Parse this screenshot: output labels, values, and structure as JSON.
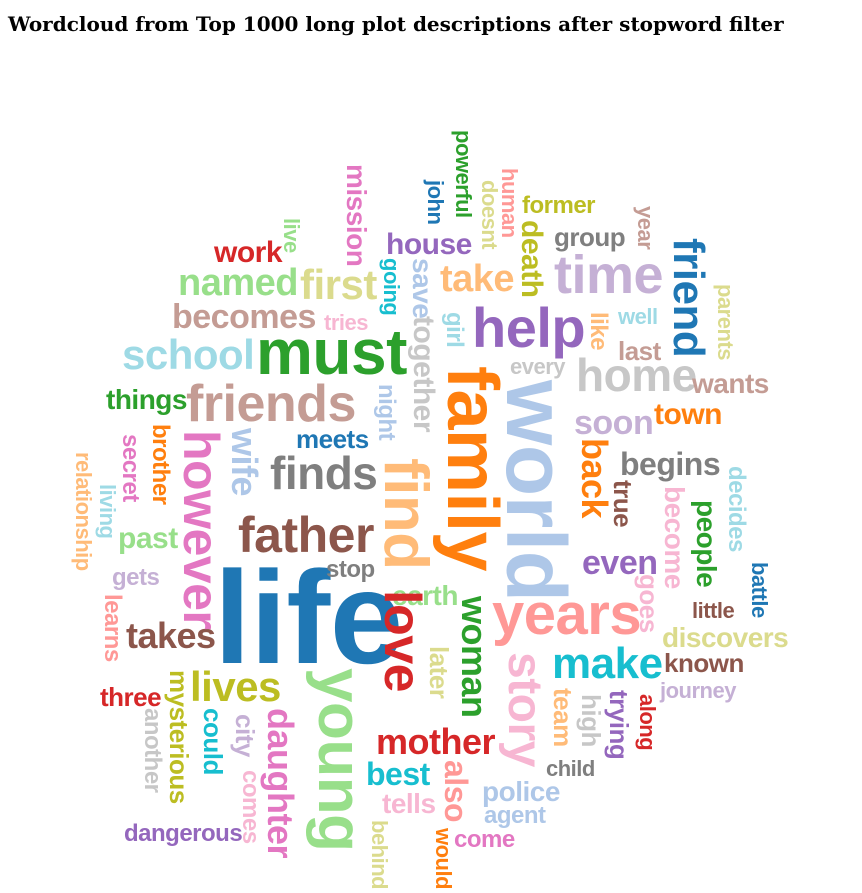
{
  "title": "Wordcloud from Top 1000 long plot descriptions after stopword filter",
  "palette": {
    "blue": "#1f77b4",
    "light_blue": "#aec7e8",
    "orange": "#ff7f0e",
    "light_orange": "#ffbb78",
    "green": "#2ca02c",
    "light_green": "#98df8a",
    "red": "#d62728",
    "light_red": "#ff9896",
    "purple": "#9467bd",
    "light_purple": "#c5b0d5",
    "brown": "#8c564b",
    "light_brown": "#c49c94",
    "pink": "#e377c2",
    "light_pink": "#f7b6d2",
    "gray": "#7f7f7f",
    "light_gray": "#c7c7c7",
    "olive": "#bcbd22",
    "light_olive": "#dbdb8d",
    "cyan": "#17becf",
    "light_cyan": "#9edae5"
  },
  "words": [
    {
      "text": "life",
      "color": "blue"
    },
    {
      "text": "world",
      "color": "light_blue"
    },
    {
      "text": "family",
      "color": "orange"
    },
    {
      "text": "must",
      "color": "green"
    },
    {
      "text": "young",
      "color": "light_green"
    },
    {
      "text": "years",
      "color": "light_red"
    },
    {
      "text": "find",
      "color": "light_orange"
    },
    {
      "text": "love",
      "color": "red"
    },
    {
      "text": "help",
      "color": "purple"
    },
    {
      "text": "time",
      "color": "light_purple"
    },
    {
      "text": "father",
      "color": "brown"
    },
    {
      "text": "friends",
      "color": "light_brown"
    },
    {
      "text": "however",
      "color": "pink"
    },
    {
      "text": "story",
      "color": "light_pink"
    },
    {
      "text": "home",
      "color": "light_gray"
    },
    {
      "text": "finds",
      "color": "gray"
    },
    {
      "text": "make",
      "color": "cyan"
    },
    {
      "text": "school",
      "color": "light_cyan"
    },
    {
      "text": "lives",
      "color": "olive"
    },
    {
      "text": "first",
      "color": "light_olive"
    },
    {
      "text": "named",
      "color": "light_green"
    },
    {
      "text": "becomes",
      "color": "light_brown"
    },
    {
      "text": "friend",
      "color": "blue"
    },
    {
      "text": "take",
      "color": "light_orange"
    },
    {
      "text": "mother",
      "color": "red"
    },
    {
      "text": "woman",
      "color": "green"
    },
    {
      "text": "daughter",
      "color": "pink"
    },
    {
      "text": "takes",
      "color": "brown"
    },
    {
      "text": "house",
      "color": "purple"
    },
    {
      "text": "wife",
      "color": "light_blue"
    },
    {
      "text": "back",
      "color": "orange"
    },
    {
      "text": "soon",
      "color": "light_purple"
    },
    {
      "text": "begins",
      "color": "gray"
    },
    {
      "text": "best",
      "color": "cyan"
    },
    {
      "text": "together",
      "color": "light_gray"
    },
    {
      "text": "death",
      "color": "olive"
    },
    {
      "text": "even",
      "color": "purple"
    },
    {
      "text": "town",
      "color": "orange"
    },
    {
      "text": "work",
      "color": "red"
    },
    {
      "text": "group",
      "color": "gray"
    },
    {
      "text": "mission",
      "color": "pink"
    },
    {
      "text": "meets",
      "color": "blue"
    },
    {
      "text": "save",
      "color": "light_blue"
    },
    {
      "text": "also",
      "color": "light_red"
    },
    {
      "text": "police",
      "color": "light_blue"
    },
    {
      "text": "people",
      "color": "green"
    },
    {
      "text": "become",
      "color": "light_pink"
    },
    {
      "text": "later",
      "color": "light_olive"
    },
    {
      "text": "things",
      "color": "green"
    },
    {
      "text": "wants",
      "color": "light_brown"
    },
    {
      "text": "past",
      "color": "light_green"
    },
    {
      "text": "discovers",
      "color": "light_olive"
    },
    {
      "text": "earth",
      "color": "light_green"
    },
    {
      "text": "known",
      "color": "brown"
    },
    {
      "text": "mysterious",
      "color": "olive"
    },
    {
      "text": "three",
      "color": "red"
    },
    {
      "text": "tells",
      "color": "light_pink"
    },
    {
      "text": "team",
      "color": "light_orange"
    },
    {
      "text": "high",
      "color": "light_gray"
    },
    {
      "text": "trying",
      "color": "purple"
    },
    {
      "text": "goes",
      "color": "light_pink"
    },
    {
      "text": "child",
      "color": "gray"
    },
    {
      "text": "former",
      "color": "olive"
    },
    {
      "text": "could",
      "color": "cyan"
    },
    {
      "text": "city",
      "color": "light_purple"
    },
    {
      "text": "comes",
      "color": "light_pink"
    },
    {
      "text": "another",
      "color": "light_gray"
    },
    {
      "text": "true",
      "color": "brown"
    },
    {
      "text": "little",
      "color": "brown"
    },
    {
      "text": "decides",
      "color": "light_cyan"
    },
    {
      "text": "brother",
      "color": "orange"
    },
    {
      "text": "secret",
      "color": "pink"
    },
    {
      "text": "gets",
      "color": "light_purple"
    },
    {
      "text": "learns",
      "color": "light_red"
    },
    {
      "text": "stop",
      "color": "gray"
    },
    {
      "text": "journey",
      "color": "light_purple"
    },
    {
      "text": "agent",
      "color": "light_blue"
    },
    {
      "text": "dangerous",
      "color": "purple"
    },
    {
      "text": "come",
      "color": "pink"
    },
    {
      "text": "along",
      "color": "red"
    },
    {
      "text": "every",
      "color": "light_gray"
    },
    {
      "text": "last",
      "color": "light_brown"
    },
    {
      "text": "night",
      "color": "light_blue"
    },
    {
      "text": "girl",
      "color": "light_cyan"
    },
    {
      "text": "like",
      "color": "light_orange"
    },
    {
      "text": "well",
      "color": "light_cyan"
    },
    {
      "text": "tries",
      "color": "light_pink"
    },
    {
      "text": "going",
      "color": "cyan"
    },
    {
      "text": "john",
      "color": "blue"
    },
    {
      "text": "powerful",
      "color": "green"
    },
    {
      "text": "doesnt",
      "color": "light_olive"
    },
    {
      "text": "human",
      "color": "light_red"
    },
    {
      "text": "year",
      "color": "light_brown"
    },
    {
      "text": "parents",
      "color": "light_olive"
    },
    {
      "text": "live",
      "color": "light_green"
    },
    {
      "text": "living",
      "color": "light_cyan"
    },
    {
      "text": "relationship",
      "color": "light_orange"
    },
    {
      "text": "battle",
      "color": "blue"
    },
    {
      "text": "behind",
      "color": "light_olive"
    },
    {
      "text": "would",
      "color": "orange"
    }
  ]
}
